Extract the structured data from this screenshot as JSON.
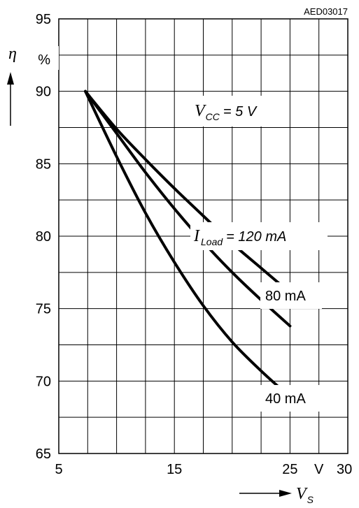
{
  "chart_data": {
    "type": "line",
    "code": "AED03017",
    "xlim": [
      5,
      30
    ],
    "ylim": [
      65,
      95
    ],
    "x_ticks": [
      {
        "value": 5,
        "label": "5"
      },
      {
        "value": 15,
        "label": "15"
      },
      {
        "value": 25,
        "label": "25"
      },
      {
        "value": 30,
        "label": "30"
      }
    ],
    "x_unit": "V",
    "y_ticks": [
      {
        "value": 95,
        "label": "95"
      },
      {
        "value": 90,
        "label": "90"
      },
      {
        "value": 85,
        "label": "85"
      },
      {
        "value": 80,
        "label": "80"
      },
      {
        "value": 75,
        "label": "75"
      },
      {
        "value": 70,
        "label": "70"
      },
      {
        "value": 65,
        "label": "65"
      }
    ],
    "y_unit": "%",
    "y_symbol": "η",
    "x_symbol": "V",
    "x_symbol_sub": "S",
    "grid": true,
    "condition": {
      "symbol": "V",
      "sub": "CC",
      "text": "= 5 V"
    },
    "series_label_symbol": "I",
    "series_label_sub": "Load",
    "series": [
      {
        "name": "= 120 mA",
        "x": [
          7.3,
          10,
          12.5,
          15,
          17.5,
          20,
          22.5,
          25
        ],
        "y": [
          90,
          87.4,
          85.3,
          83.3,
          81.4,
          79.5,
          77.8,
          76.1
        ]
      },
      {
        "name": "80 mA",
        "x": [
          7.3,
          10,
          12.5,
          15,
          17.5,
          20,
          22.5,
          25
        ],
        "y": [
          90,
          87.1,
          84.4,
          81.9,
          79.6,
          77.5,
          75.6,
          73.8
        ]
      },
      {
        "name": "40 mA",
        "x": [
          7.3,
          10,
          12.5,
          15,
          17.5,
          20,
          22.5,
          25
        ],
        "y": [
          90,
          85.5,
          81.6,
          78.2,
          75.2,
          72.7,
          70.7,
          68.9
        ]
      }
    ]
  }
}
